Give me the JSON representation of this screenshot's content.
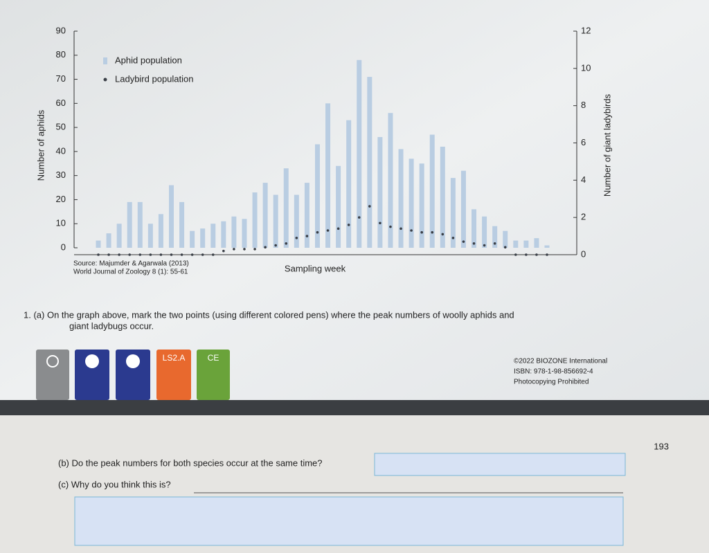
{
  "chart_data": {
    "type": "bar",
    "xlabel": "Sampling week",
    "ylabel": "Number of aphids",
    "y2label": "Number of giant ladybirds",
    "source": [
      "Source: Majumder & Agarwala (2013)",
      "World Journal of Zoology 8 (1): 55-61"
    ],
    "ylim": [
      0,
      90
    ],
    "yticks": [
      0,
      10,
      20,
      30,
      40,
      50,
      60,
      70,
      80,
      90
    ],
    "y2lim": [
      0,
      12
    ],
    "y2ticks": [
      0,
      2,
      4,
      6,
      8,
      10,
      12
    ],
    "legend": "upper left",
    "series": [
      {
        "name": "Aphid population",
        "type": "bar",
        "color": "#b9cde2",
        "values": [
          3,
          6,
          10,
          19,
          19,
          10,
          14,
          26,
          19,
          7,
          8,
          10,
          11,
          13,
          12,
          23,
          27,
          22,
          33,
          22,
          27,
          43,
          60,
          34,
          53,
          78,
          71,
          46,
          56,
          41,
          37,
          35,
          47,
          42,
          29,
          32,
          16,
          13,
          9,
          7,
          3,
          3,
          4,
          1
        ]
      },
      {
        "name": "Ladybird population",
        "type": "scatter",
        "axis": "y2",
        "color": "#3a3f47",
        "values": [
          0,
          0,
          0,
          0,
          0,
          0,
          0,
          0,
          0,
          0,
          0,
          0,
          0.2,
          0.3,
          0.3,
          0.3,
          0.4,
          0.5,
          0.6,
          0.9,
          1.0,
          1.2,
          1.3,
          1.4,
          1.6,
          2.0,
          2.6,
          1.7,
          1.5,
          1.4,
          1.3,
          1.2,
          1.2,
          1.1,
          0.9,
          0.7,
          0.6,
          0.5,
          0.6,
          0.4,
          0,
          0,
          0,
          0
        ]
      }
    ]
  },
  "question_1a": [
    "1. (a) On the graph above, mark the two points (using different colored pens) where the peak numbers of woolly aphids and",
    "giant ladybugs occur."
  ],
  "badges": [
    "LS2.A",
    "CE"
  ],
  "copyright": [
    "©2022 BIOZONE International",
    "ISBN: 978-1-98-856692-4",
    "Photocopying Prohibited"
  ],
  "page_number": 193,
  "question_1b": "(b) Do the peak numbers for both species occur at the same time?",
  "question_1c": "(c) Why do you think this is?"
}
